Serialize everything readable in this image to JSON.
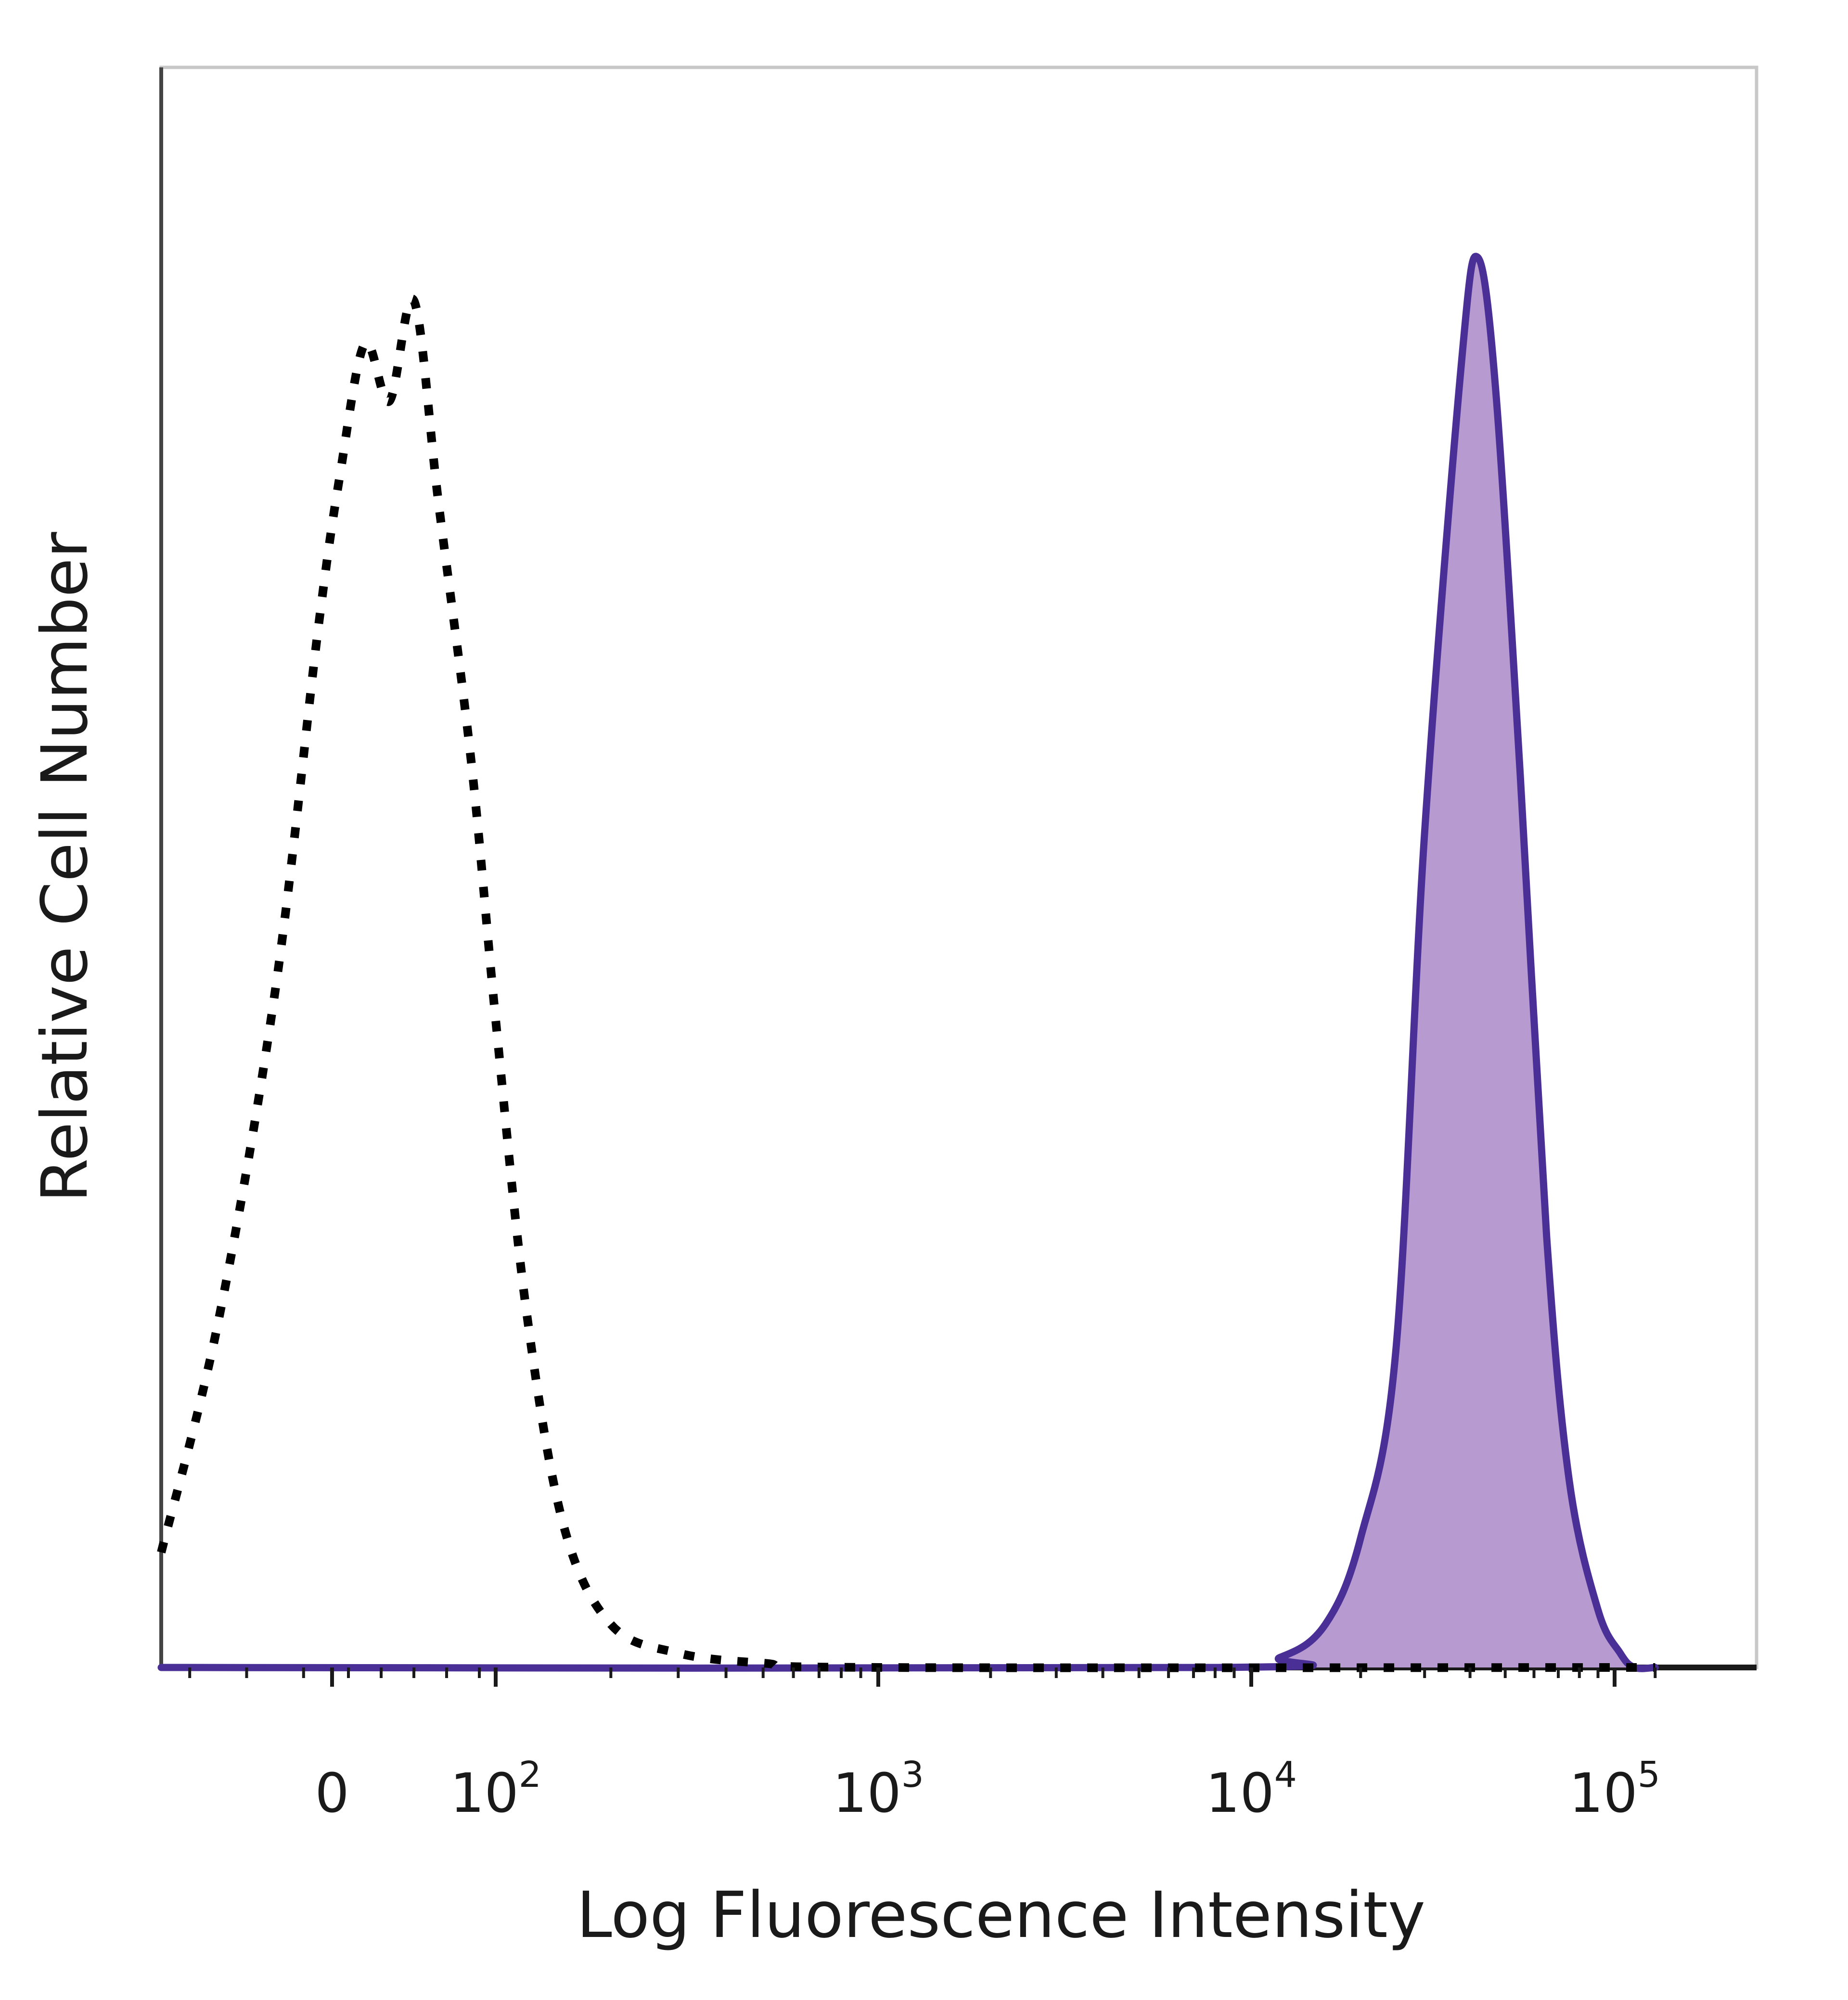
{
  "chart_data": {
    "type": "area",
    "title": "",
    "xlabel": "Log Fluorescence Intensity",
    "ylabel": "Relative Cell Number",
    "x_scale": "biexponential",
    "xlim": [
      -60,
      200000
    ],
    "ylim": [
      0,
      100
    ],
    "x_ticks": [
      {
        "value": 0,
        "label": "0"
      },
      {
        "value": 100,
        "label": "10",
        "exp": "2"
      },
      {
        "value": 1000,
        "label": "10",
        "exp": "3"
      },
      {
        "value": 10000,
        "label": "10",
        "exp": "4"
      },
      {
        "value": 100000,
        "label": "10",
        "exp": "5"
      }
    ],
    "legend": "none",
    "grid": false,
    "series": [
      {
        "style": "dotted",
        "color": "#000000",
        "fill": "none",
        "points": [
          {
            "x": -60,
            "y": 8
          },
          {
            "x": -40,
            "y": 24
          },
          {
            "x": -20,
            "y": 47
          },
          {
            "x": -5,
            "y": 72
          },
          {
            "x": 5,
            "y": 83
          },
          {
            "x": 20,
            "y": 92
          },
          {
            "x": 35,
            "y": 88
          },
          {
            "x": 50,
            "y": 95
          },
          {
            "x": 65,
            "y": 81
          },
          {
            "x": 85,
            "y": 63
          },
          {
            "x": 100,
            "y": 45
          },
          {
            "x": 120,
            "y": 25
          },
          {
            "x": 150,
            "y": 10
          },
          {
            "x": 200,
            "y": 3
          },
          {
            "x": 300,
            "y": 1
          },
          {
            "x": 500,
            "y": 0.3
          },
          {
            "x": 1000,
            "y": 0
          },
          {
            "x": 200000,
            "y": 0
          }
        ]
      },
      {
        "style": "solid",
        "color": "#4a2f96",
        "fill": "#b79ad0",
        "points": [
          {
            "x": -60,
            "y": 0
          },
          {
            "x": 8000,
            "y": 0
          },
          {
            "x": 12000,
            "y": 0.7
          },
          {
            "x": 16000,
            "y": 3
          },
          {
            "x": 20000,
            "y": 9
          },
          {
            "x": 25000,
            "y": 22
          },
          {
            "x": 30000,
            "y": 58
          },
          {
            "x": 38000,
            "y": 91
          },
          {
            "x": 42000,
            "y": 98
          },
          {
            "x": 47000,
            "y": 89
          },
          {
            "x": 55000,
            "y": 62
          },
          {
            "x": 65000,
            "y": 30
          },
          {
            "x": 75000,
            "y": 13
          },
          {
            "x": 90000,
            "y": 4
          },
          {
            "x": 110000,
            "y": 1
          },
          {
            "x": 140000,
            "y": 0
          },
          {
            "x": 200000,
            "y": 0
          }
        ]
      }
    ]
  }
}
